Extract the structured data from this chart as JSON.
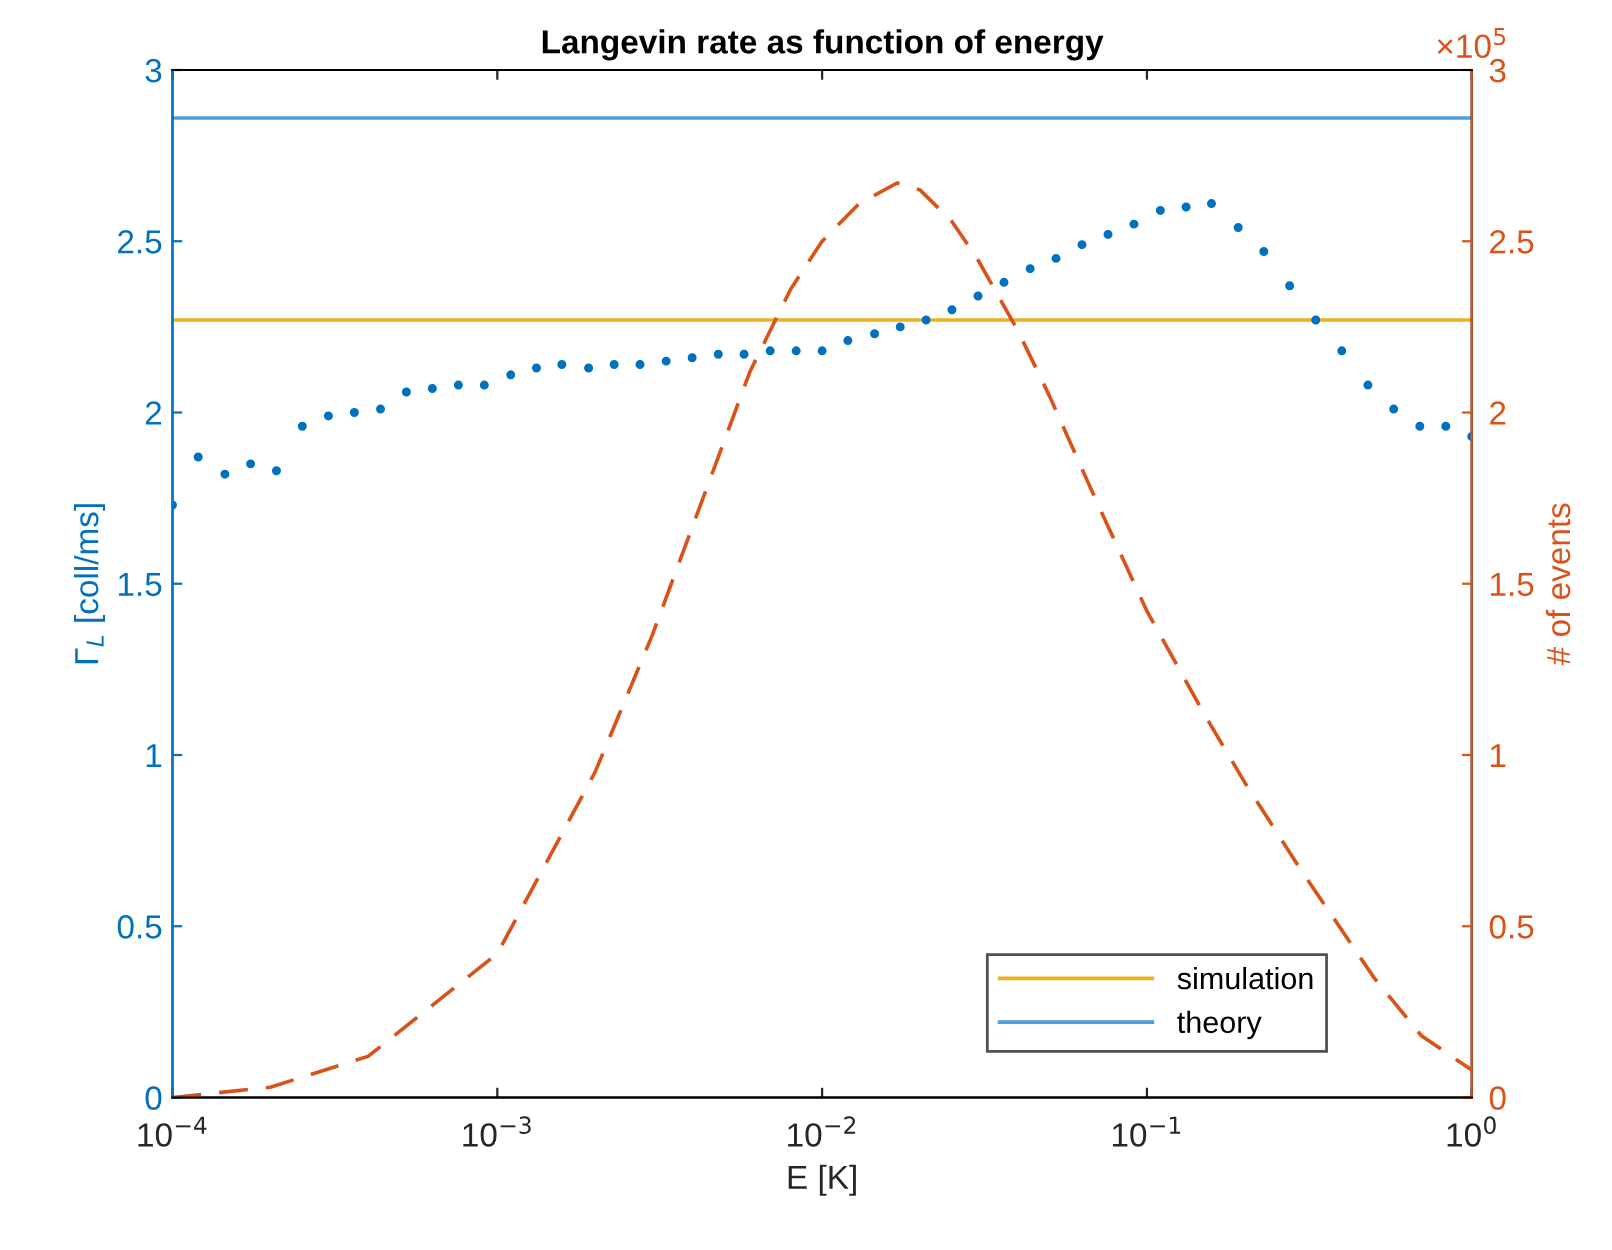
{
  "chart_data": {
    "type": "line",
    "title": "Langevin rate as function of energy",
    "xlabel": "E [K]",
    "ylabel": "Γ$_{L}$ [coll/ms]",
    "y2label": "# of events",
    "log": "x",
    "xlim": [
      0.0001,
      1
    ],
    "xticks": [
      {
        "value": 0.0001,
        "label": "10$^{−4}$"
      },
      {
        "value": 0.001,
        "label": "10$^{−3}$"
      },
      {
        "value": 0.01,
        "label": "10$^{−2}$"
      },
      {
        "value": 0.1,
        "label": "10$^{−1}$"
      },
      {
        "value": 1,
        "label": "10$^{0}$"
      }
    ],
    "ylim": [
      0,
      3
    ],
    "yticks": [
      0,
      0.5,
      1,
      1.5,
      2,
      2.5,
      3
    ],
    "y2lim": [
      0,
      3
    ],
    "y2ticks": [
      0,
      0.5,
      1,
      1.5,
      2,
      2.5,
      3
    ],
    "annotations": [
      "×10$^{5}$"
    ],
    "legend": "bottom right",
    "grid": false,
    "series": [
      {
        "type": "scatter",
        "marker": "circle",
        "color": "#0072bd",
        "x": [
          0.0001,
          0.00012,
          0.000145,
          0.000174,
          0.000209,
          0.000251,
          0.000302,
          0.000363,
          0.000437,
          0.000525,
          0.000631,
          0.000759,
          0.000912,
          0.0011,
          0.00132,
          0.00158,
          0.00191,
          0.00229,
          0.00275,
          0.00331,
          0.00398,
          0.00479,
          0.00575,
          0.00692,
          0.00832,
          0.01,
          0.012,
          0.0145,
          0.0174,
          0.0209,
          0.0251,
          0.0302,
          0.0363,
          0.0437,
          0.0525,
          0.0631,
          0.0759,
          0.0912,
          0.11,
          0.132,
          0.158,
          0.191,
          0.229,
          0.275,
          0.331,
          0.398,
          0.479,
          0.575,
          0.692,
          0.832,
          1
        ],
        "values": [
          1.73,
          1.87,
          1.82,
          1.85,
          1.83,
          1.96,
          1.99,
          2.0,
          2.01,
          2.06,
          2.07,
          2.08,
          2.08,
          2.11,
          2.13,
          2.14,
          2.13,
          2.14,
          2.14,
          2.15,
          2.16,
          2.17,
          2.17,
          2.18,
          2.18,
          2.18,
          2.21,
          2.23,
          2.25,
          2.27,
          2.3,
          2.34,
          2.38,
          2.42,
          2.45,
          2.49,
          2.52,
          2.55,
          2.59,
          2.6,
          2.61,
          2.54,
          2.47,
          2.37,
          2.27,
          2.18,
          2.08,
          2.01,
          1.96,
          1.96,
          1.93
        ]
      },
      {
        "axis": "y2",
        "line_style": "dashed",
        "color": "#d95319",
        "x": [
          0.0001,
          0.0002,
          0.0004,
          0.001,
          0.002,
          0.003,
          0.004,
          0.006,
          0.008,
          0.01,
          0.013,
          0.017,
          0.02,
          0.025,
          0.03,
          0.04,
          0.05,
          0.07,
          0.1,
          0.15,
          0.2,
          0.3,
          0.5,
          0.7,
          1
        ],
        "values": [
          0,
          0.03,
          0.12,
          0.42,
          0.95,
          1.35,
          1.67,
          2.12,
          2.36,
          2.5,
          2.61,
          2.67,
          2.65,
          2.56,
          2.45,
          2.24,
          2.05,
          1.74,
          1.42,
          1.12,
          0.92,
          0.66,
          0.35,
          0.18,
          0.08
        ]
      },
      {
        "type": "line",
        "name": "simulation",
        "line_style": "solid",
        "color": "#edb120",
        "x": [
          0.0001,
          1
        ],
        "values": [
          2.27,
          2.27
        ]
      },
      {
        "type": "line",
        "name": "theory",
        "line_style": "solid",
        "color": "#4d9fdc",
        "x": [
          0.0001,
          1
        ],
        "values": [
          2.86,
          2.86
        ]
      }
    ]
  }
}
